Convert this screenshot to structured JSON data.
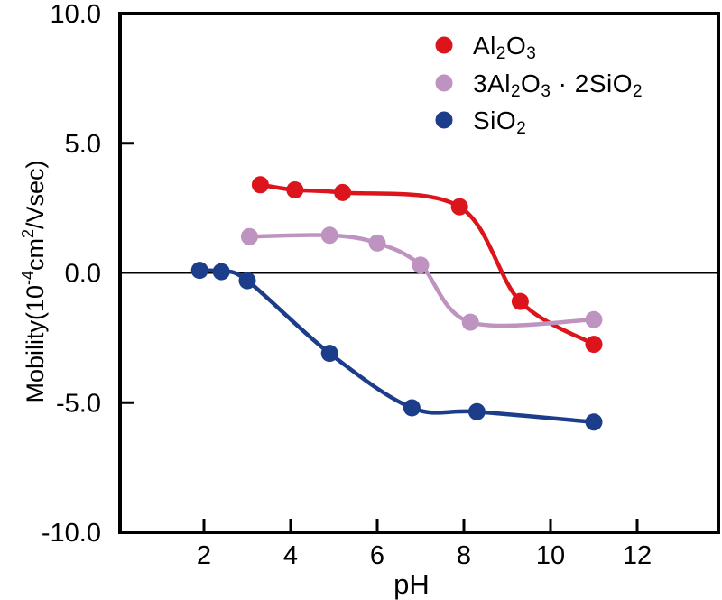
{
  "figure": {
    "background": "#ffffff",
    "frame_color": "#000000"
  },
  "chart_data": {
    "type": "line",
    "title": "",
    "xlabel": "pH",
    "ylabel": "Mobility(10^{-4}cm^{2}/Vsec)",
    "xlim": [
      0,
      14
    ],
    "ylim": [
      -10.0,
      10.0
    ],
    "x_ticks": [
      2,
      4,
      6,
      8,
      10,
      12
    ],
    "y_ticks": [
      {
        "value": 10,
        "label": "10.0"
      },
      {
        "value": 5,
        "label": "5.0"
      },
      {
        "value": 0,
        "label": "0.0"
      },
      {
        "value": -5,
        "label": "-5.0"
      },
      {
        "value": -10,
        "label": "-10.0"
      }
    ],
    "zero_line": true,
    "grid": false,
    "legend_position": "top-right-inside",
    "series": [
      {
        "name": "Al_{2}O_{3}",
        "color": "#dc141c",
        "points": [
          [
            3.3,
            3.4
          ],
          [
            4.1,
            3.2
          ],
          [
            5.2,
            3.1
          ],
          [
            7.9,
            2.55
          ],
          [
            9.3,
            -1.1
          ],
          [
            11.0,
            -2.75
          ]
        ]
      },
      {
        "name": "3Al_{2}O_{3} · 2SiO_{2}",
        "color": "#bf93c0",
        "points": [
          [
            3.05,
            1.4
          ],
          [
            4.9,
            1.45
          ],
          [
            6.0,
            1.15
          ],
          [
            7.0,
            0.3
          ],
          [
            8.15,
            -1.9
          ],
          [
            11.0,
            -1.8
          ]
        ]
      },
      {
        "name": "SiO_{2}",
        "color": "#1c3d8a",
        "points": [
          [
            1.9,
            0.1
          ],
          [
            2.4,
            0.05
          ],
          [
            3.0,
            -0.3
          ],
          [
            4.9,
            -3.1
          ],
          [
            6.8,
            -5.2
          ],
          [
            8.3,
            -5.35
          ],
          [
            11.0,
            -5.75
          ]
        ]
      }
    ]
  }
}
